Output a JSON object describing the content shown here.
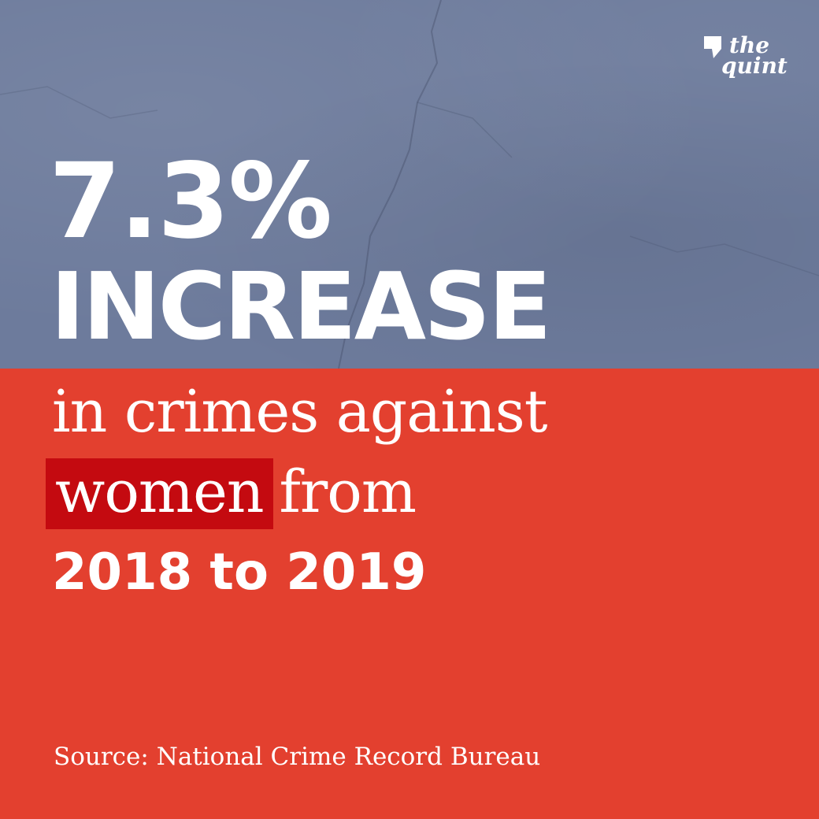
{
  "logo": {
    "line1": "the",
    "line2": "quint"
  },
  "headline": {
    "percent": "7.3%",
    "word": "INCREASE"
  },
  "body": {
    "line1": "in crimes against",
    "highlight": "women",
    "line2_rest": "from",
    "years": "2018 to 2019"
  },
  "source": "Source: National Crime Record Bureau",
  "colors": {
    "top_panel": "#6d7b9c",
    "bottom_panel": "#e3402f",
    "highlight": "#c40a10",
    "text": "#ffffff"
  }
}
